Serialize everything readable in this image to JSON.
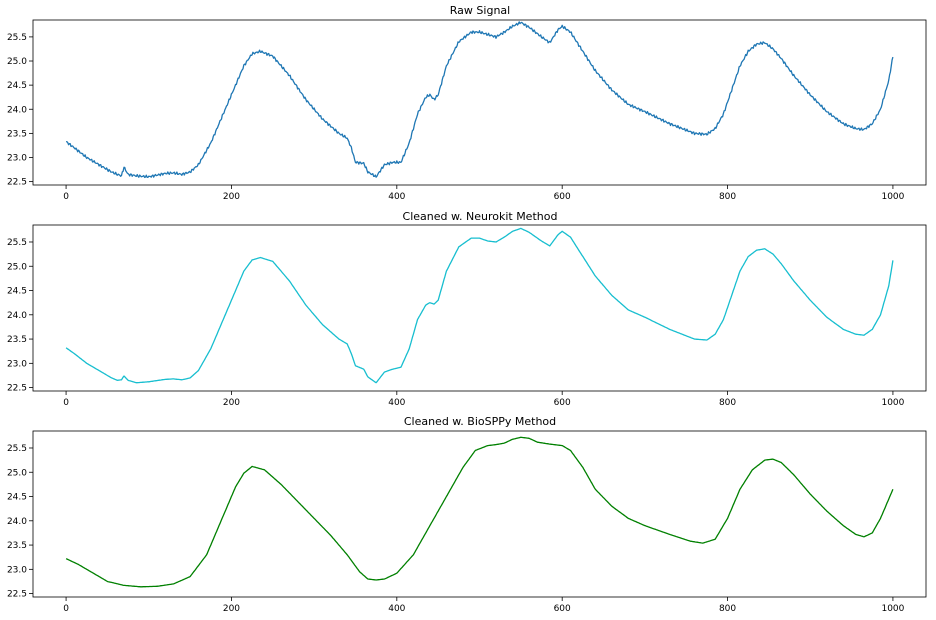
{
  "chart_data": [
    {
      "type": "line",
      "title": "Raw Signal",
      "color": "#1f77b4",
      "xlim": [
        -40,
        1040
      ],
      "ylim": [
        22.43,
        25.85
      ],
      "xticks": [
        0,
        200,
        400,
        600,
        800,
        1000
      ],
      "yticks": [
        22.5,
        23.0,
        23.5,
        24.0,
        24.5,
        25.0,
        25.5
      ],
      "ytick_labels": [
        "22.5",
        "23.0",
        "23.5",
        "24.0",
        "24.5",
        "25.0",
        "25.5"
      ],
      "noise": true,
      "x": [
        0,
        10,
        25,
        40,
        55,
        62,
        67,
        70,
        75,
        85,
        100,
        120,
        130,
        140,
        150,
        160,
        175,
        190,
        205,
        215,
        225,
        235,
        250,
        270,
        290,
        310,
        330,
        340,
        345,
        350,
        360,
        365,
        375,
        385,
        395,
        405,
        415,
        425,
        435,
        440,
        445,
        450,
        460,
        475,
        490,
        500,
        510,
        520,
        530,
        540,
        550,
        560,
        575,
        585,
        595,
        600,
        610,
        625,
        640,
        660,
        680,
        700,
        730,
        760,
        775,
        785,
        795,
        805,
        815,
        825,
        835,
        845,
        855,
        865,
        880,
        900,
        920,
        940,
        955,
        965,
        975,
        985,
        995,
        1000
      ],
      "y": [
        23.33,
        23.2,
        23.0,
        22.85,
        22.7,
        22.65,
        22.62,
        22.8,
        22.65,
        22.62,
        22.6,
        22.67,
        22.68,
        22.65,
        22.7,
        22.85,
        23.3,
        23.9,
        24.5,
        24.9,
        25.15,
        25.2,
        25.1,
        24.7,
        24.2,
        23.8,
        23.5,
        23.4,
        23.2,
        22.9,
        22.88,
        22.7,
        22.6,
        22.85,
        22.9,
        22.9,
        23.3,
        23.9,
        24.25,
        24.3,
        24.2,
        24.3,
        24.9,
        25.4,
        25.6,
        25.6,
        25.55,
        25.5,
        25.6,
        25.72,
        25.8,
        25.7,
        25.5,
        25.38,
        25.65,
        25.72,
        25.6,
        25.2,
        24.8,
        24.4,
        24.1,
        23.95,
        23.7,
        23.5,
        23.48,
        23.6,
        23.9,
        24.4,
        24.9,
        25.2,
        25.35,
        25.38,
        25.25,
        25.05,
        24.7,
        24.3,
        23.95,
        23.7,
        23.6,
        23.58,
        23.7,
        24.0,
        24.6,
        25.1
      ]
    },
    {
      "type": "line",
      "title": "Cleaned w. Neurokit Method",
      "color": "#17becf",
      "xlim": [
        -40,
        1040
      ],
      "ylim": [
        22.43,
        25.85
      ],
      "xticks": [
        0,
        200,
        400,
        600,
        800,
        1000
      ],
      "yticks": [
        22.5,
        23.0,
        23.5,
        24.0,
        24.5,
        25.0,
        25.5
      ],
      "ytick_labels": [
        "22.5",
        "23.0",
        "23.5",
        "24.0",
        "24.5",
        "25.0",
        "25.5"
      ],
      "noise": false,
      "x": [
        0,
        10,
        25,
        40,
        55,
        62,
        67,
        70,
        75,
        85,
        100,
        120,
        130,
        140,
        150,
        160,
        175,
        190,
        205,
        215,
        225,
        235,
        250,
        270,
        290,
        310,
        330,
        340,
        345,
        350,
        360,
        365,
        375,
        385,
        395,
        405,
        415,
        425,
        435,
        440,
        445,
        450,
        460,
        475,
        490,
        500,
        510,
        520,
        530,
        540,
        550,
        560,
        575,
        585,
        595,
        600,
        610,
        625,
        640,
        660,
        680,
        700,
        730,
        760,
        775,
        785,
        795,
        805,
        815,
        825,
        835,
        845,
        855,
        865,
        880,
        900,
        920,
        940,
        955,
        965,
        975,
        985,
        995,
        1000
      ],
      "y": [
        23.32,
        23.2,
        23.0,
        22.85,
        22.7,
        22.65,
        22.66,
        22.74,
        22.65,
        22.6,
        22.62,
        22.67,
        22.68,
        22.66,
        22.7,
        22.85,
        23.3,
        23.9,
        24.5,
        24.9,
        25.13,
        25.18,
        25.1,
        24.7,
        24.2,
        23.8,
        23.5,
        23.4,
        23.2,
        22.95,
        22.88,
        22.72,
        22.6,
        22.82,
        22.88,
        22.92,
        23.3,
        23.9,
        24.2,
        24.25,
        24.22,
        24.3,
        24.9,
        25.4,
        25.58,
        25.58,
        25.52,
        25.5,
        25.6,
        25.72,
        25.78,
        25.7,
        25.52,
        25.42,
        25.65,
        25.72,
        25.6,
        25.2,
        24.8,
        24.4,
        24.1,
        23.95,
        23.7,
        23.5,
        23.48,
        23.6,
        23.9,
        24.4,
        24.9,
        25.2,
        25.33,
        25.36,
        25.25,
        25.05,
        24.7,
        24.3,
        23.95,
        23.7,
        23.6,
        23.58,
        23.7,
        24.0,
        24.6,
        25.12
      ]
    },
    {
      "type": "line",
      "title": "Cleaned w. BioSPPy Method",
      "color": "#008000",
      "xlim": [
        -40,
        1040
      ],
      "ylim": [
        22.43,
        25.85
      ],
      "xticks": [
        0,
        200,
        400,
        600,
        800,
        1000
      ],
      "yticks": [
        22.5,
        23.0,
        23.5,
        24.0,
        24.5,
        25.0,
        25.5
      ],
      "ytick_labels": [
        "22.5",
        "23.0",
        "23.5",
        "24.0",
        "24.5",
        "25.0",
        "25.5"
      ],
      "noise": false,
      "x": [
        0,
        15,
        30,
        50,
        70,
        90,
        110,
        130,
        150,
        170,
        190,
        205,
        215,
        225,
        240,
        260,
        280,
        300,
        320,
        340,
        355,
        365,
        375,
        385,
        400,
        420,
        440,
        460,
        480,
        495,
        510,
        520,
        530,
        540,
        550,
        560,
        570,
        585,
        600,
        610,
        625,
        640,
        660,
        680,
        700,
        730,
        755,
        770,
        785,
        800,
        815,
        830,
        845,
        855,
        865,
        880,
        900,
        920,
        940,
        955,
        965,
        975,
        985,
        995,
        1000
      ],
      "y": [
        23.22,
        23.1,
        22.95,
        22.75,
        22.67,
        22.64,
        22.65,
        22.7,
        22.85,
        23.3,
        24.1,
        24.7,
        24.98,
        25.12,
        25.05,
        24.75,
        24.4,
        24.05,
        23.7,
        23.3,
        22.95,
        22.8,
        22.78,
        22.8,
        22.92,
        23.3,
        23.9,
        24.5,
        25.1,
        25.45,
        25.55,
        25.57,
        25.6,
        25.68,
        25.72,
        25.7,
        25.62,
        25.58,
        25.55,
        25.45,
        25.1,
        24.65,
        24.3,
        24.05,
        23.9,
        23.72,
        23.58,
        23.54,
        23.62,
        24.05,
        24.65,
        25.05,
        25.25,
        25.27,
        25.2,
        24.95,
        24.55,
        24.2,
        23.9,
        23.72,
        23.67,
        23.75,
        24.05,
        24.45,
        24.65
      ]
    }
  ]
}
